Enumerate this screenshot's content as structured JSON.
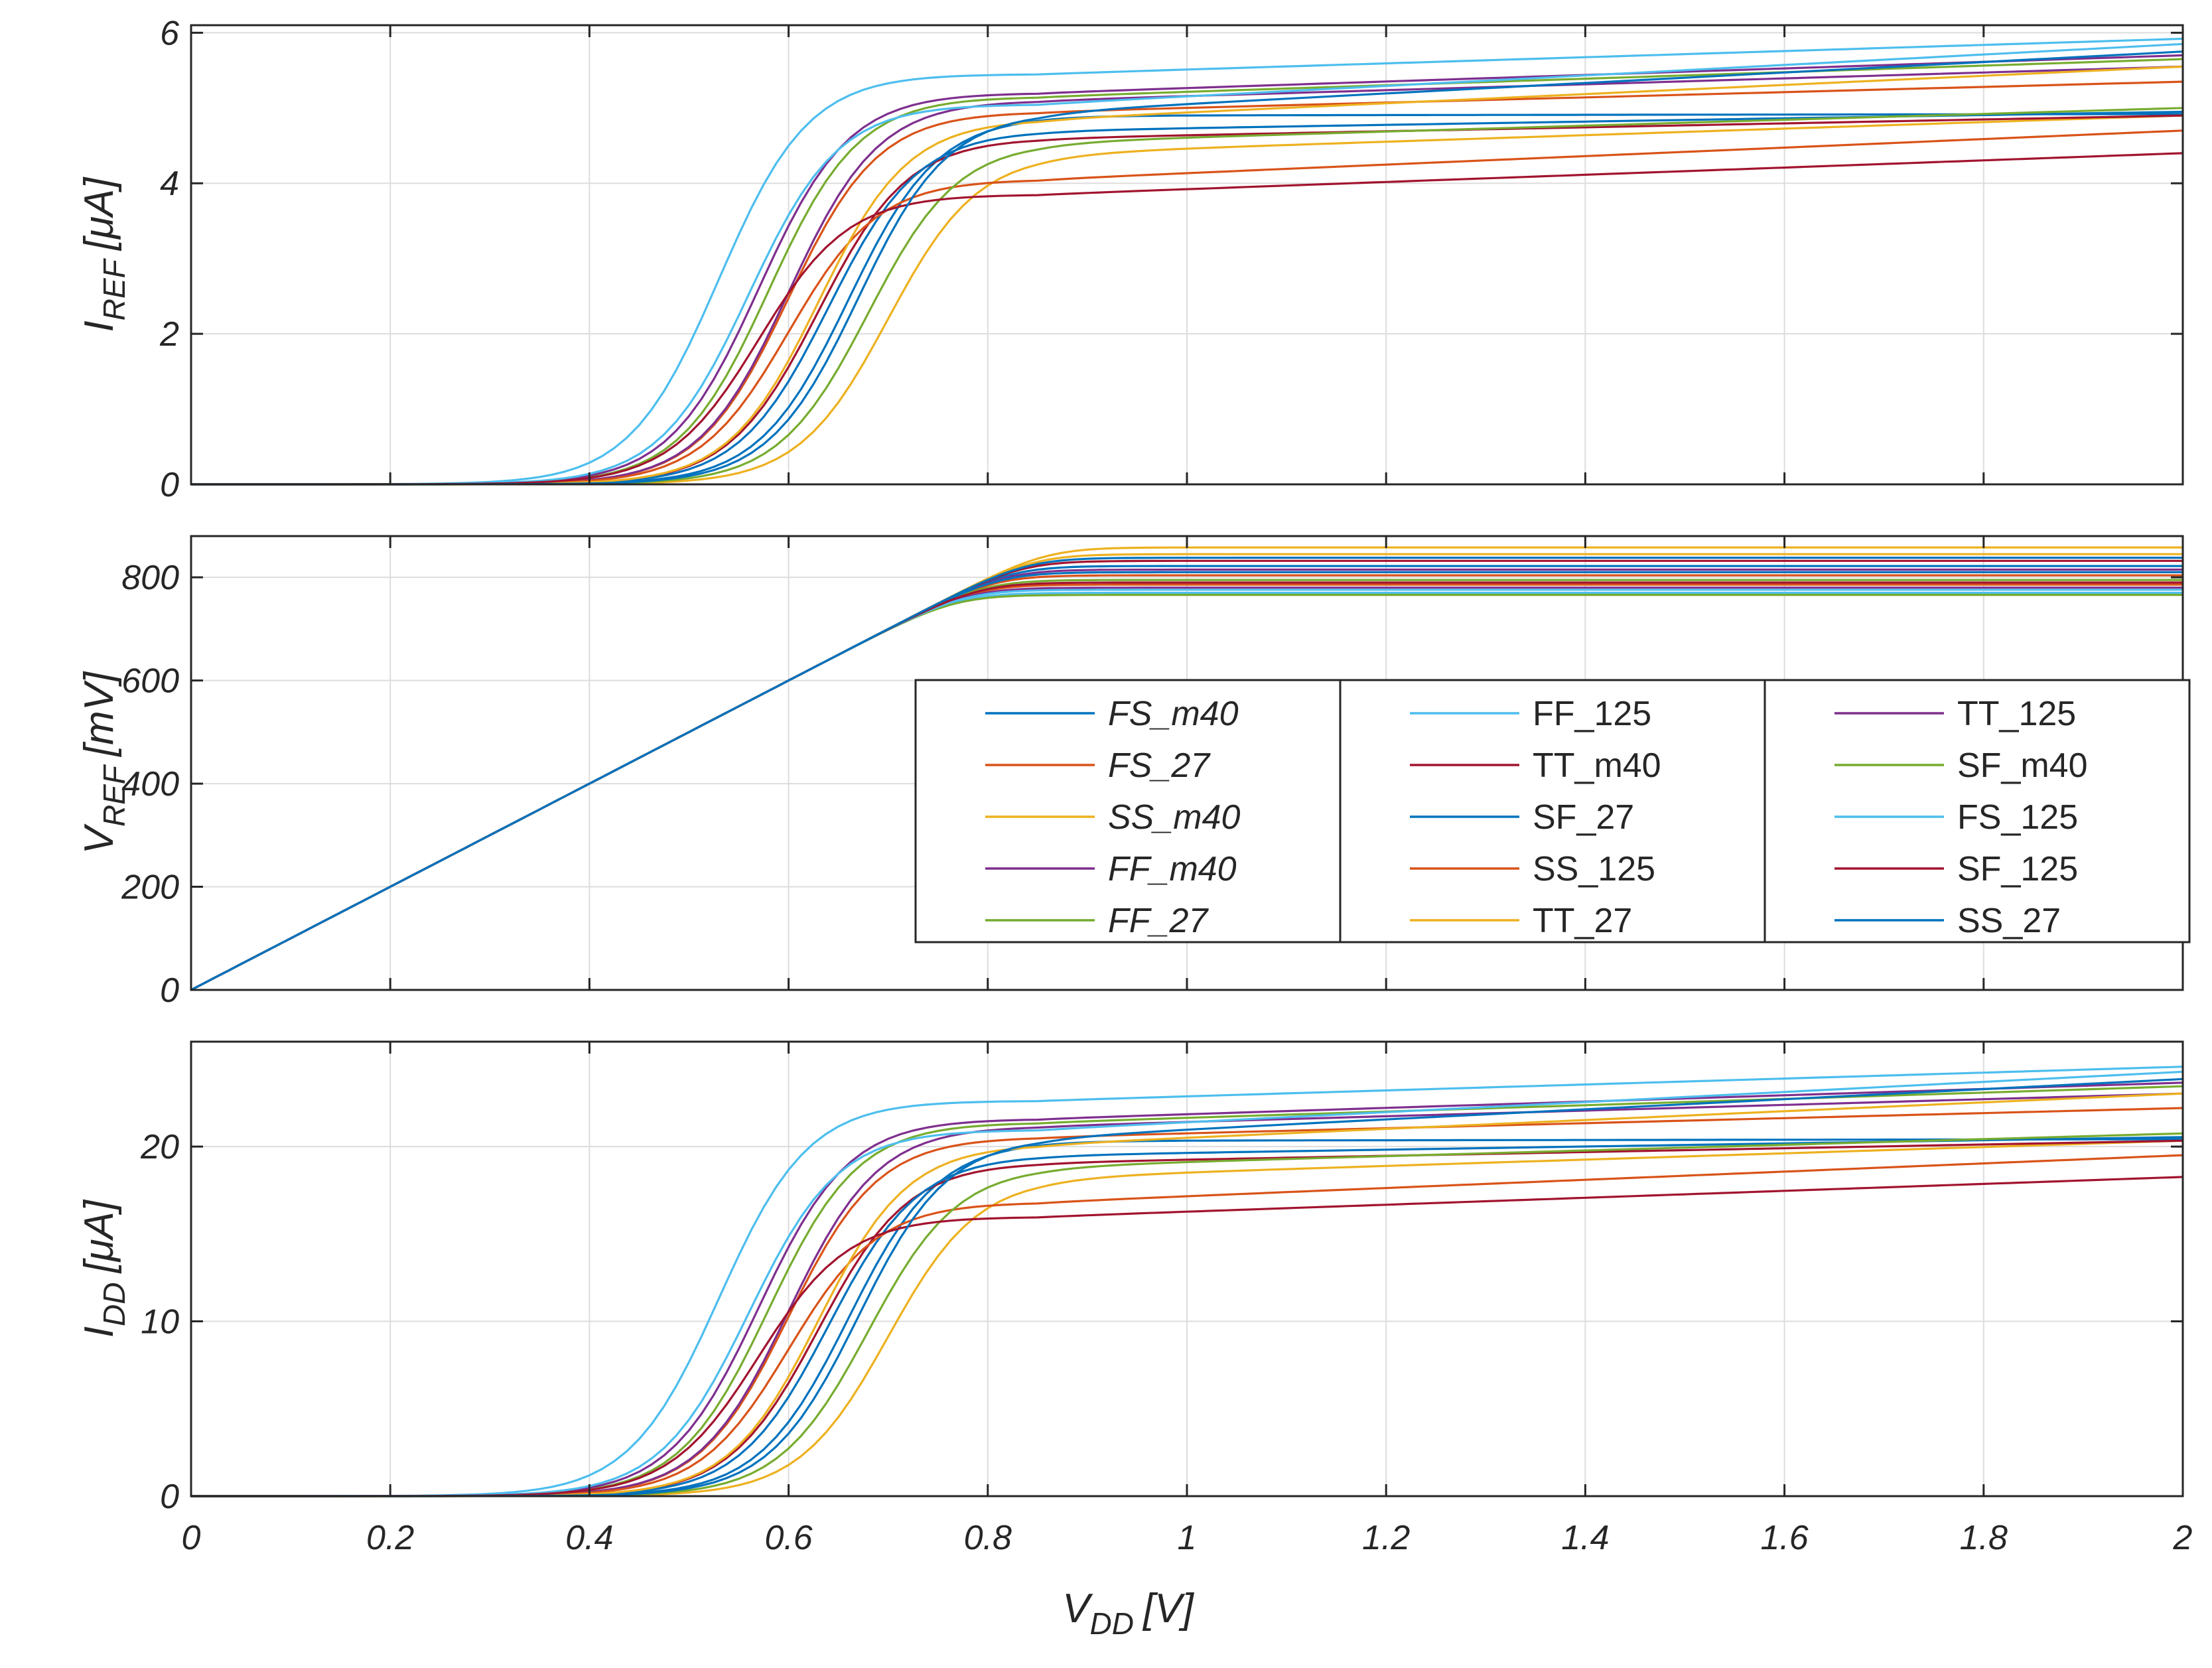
{
  "chart_data": {
    "type": "line",
    "x": [
      0,
      0.05,
      0.1,
      0.15,
      0.2,
      0.25,
      0.3,
      0.35,
      0.4,
      0.45,
      0.5,
      0.55,
      0.6,
      0.65,
      0.7,
      0.75,
      0.8,
      0.85,
      0.9,
      0.95,
      1.0,
      1.1,
      1.2,
      1.3,
      1.4,
      1.5,
      1.6,
      1.7,
      1.8,
      1.9,
      2.0
    ],
    "xlabel": "V",
    "xlabel_sub": "DD",
    "xlabel_unit": "[V]",
    "xlim": [
      0,
      2
    ],
    "xticks": [
      "0",
      "0.2",
      "0.4",
      "0.6",
      "0.8",
      "1",
      "1.2",
      "1.4",
      "1.6",
      "1.8",
      "2"
    ],
    "colors": {
      "blue": "#0072BD",
      "orange": "#D95319",
      "yellow": "#EDB120",
      "purple": "#7E2F8E",
      "green": "#77AC30",
      "cyan": "#4DBEEE",
      "red": "#A2142F",
      "axis": "#262626",
      "grid": "#dddddd"
    },
    "legend": {
      "placement": "center-right of middle panel",
      "columns": [
        [
          {
            "label": "FS_m40",
            "color": "#0072BD",
            "italic": true
          },
          {
            "label": "FS_27",
            "color": "#D95319",
            "italic": true
          },
          {
            "label": "SS_m40",
            "color": "#EDB120",
            "italic": true
          },
          {
            "label": "FF_m40",
            "color": "#7E2F8E",
            "italic": true
          },
          {
            "label": "FF_27",
            "color": "#77AC30",
            "italic": true
          }
        ],
        [
          {
            "label": "FF_125",
            "color": "#4DBEEE",
            "italic": false
          },
          {
            "label": "TT_m40",
            "color": "#A2142F",
            "italic": false
          },
          {
            "label": "SF_27",
            "color": "#0072BD",
            "italic": false
          },
          {
            "label": "SS_125",
            "color": "#D95319",
            "italic": false
          },
          {
            "label": "TT_27",
            "color": "#EDB120",
            "italic": false
          }
        ],
        [
          {
            "label": "TT_125",
            "color": "#7E2F8E",
            "italic": false
          },
          {
            "label": "SF_m40",
            "color": "#77AC30",
            "italic": false
          },
          {
            "label": "FS_125",
            "color": "#4DBEEE",
            "italic": false
          },
          {
            "label": "SF_125",
            "color": "#A2142F",
            "italic": false
          },
          {
            "label": "SS_27",
            "color": "#0072BD",
            "italic": false
          }
        ]
      ]
    },
    "corners": [
      {
        "name": "FS_m40",
        "color": "#0072BD",
        "vth": 0.66,
        "sat_i": 4.9,
        "end_i": 4.92,
        "vref": 822
      },
      {
        "name": "FS_27",
        "color": "#D95319",
        "vth": 0.6,
        "sat_i": 4.95,
        "end_i": 5.35,
        "vref": 804
      },
      {
        "name": "SS_m40",
        "color": "#EDB120",
        "vth": 0.7,
        "sat_i": 4.4,
        "end_i": 4.9,
        "vref": 858
      },
      {
        "name": "FF_m40",
        "color": "#7E2F8E",
        "vth": 0.6,
        "sat_i": 5.1,
        "end_i": 5.55,
        "vref": 815
      },
      {
        "name": "FF_27",
        "color": "#77AC30",
        "vth": 0.58,
        "sat_i": 5.15,
        "end_i": 5.65,
        "vref": 795
      },
      {
        "name": "FF_125",
        "color": "#4DBEEE",
        "vth": 0.53,
        "sat_i": 5.45,
        "end_i": 5.92,
        "vref": 770
      },
      {
        "name": "TT_m40",
        "color": "#A2142F",
        "vth": 0.63,
        "sat_i": 4.6,
        "end_i": 4.9,
        "vref": 832
      },
      {
        "name": "SF_27",
        "color": "#0072BD",
        "vth": 0.64,
        "sat_i": 4.7,
        "end_i": 4.95,
        "vref": 810
      },
      {
        "name": "SS_125",
        "color": "#D95319",
        "vth": 0.6,
        "sat_i": 4.05,
        "end_i": 4.7,
        "vref": 786
      },
      {
        "name": "TT_27",
        "color": "#EDB120",
        "vth": 0.63,
        "sat_i": 4.85,
        "end_i": 5.55,
        "vref": 845
      },
      {
        "name": "TT_125",
        "color": "#7E2F8E",
        "vth": 0.57,
        "sat_i": 5.2,
        "end_i": 5.7,
        "vref": 780
      },
      {
        "name": "SF_m40",
        "color": "#77AC30",
        "vth": 0.68,
        "sat_i": 4.55,
        "end_i": 5.0,
        "vref": 766
      },
      {
        "name": "FS_125",
        "color": "#4DBEEE",
        "vth": 0.56,
        "sat_i": 5.05,
        "end_i": 5.85,
        "vref": 776
      },
      {
        "name": "SF_125",
        "color": "#A2142F",
        "vth": 0.57,
        "sat_i": 3.85,
        "end_i": 4.4,
        "vref": 790
      },
      {
        "name": "SS_27",
        "color": "#0072BD",
        "vth": 0.67,
        "sat_i": 4.95,
        "end_i": 5.75,
        "vref": 838
      }
    ],
    "panels": [
      {
        "id": "iref",
        "ylabel": "I",
        "ylabel_sub": "REF",
        "ylabel_unit": "[μA]",
        "ylim": [
          0,
          6.1
        ],
        "yticks": [
          0,
          2,
          4,
          6
        ],
        "ytick_labels": [
          "0",
          "2",
          "4",
          "6"
        ],
        "scale": 1.0
      },
      {
        "id": "vref",
        "ylabel": "V",
        "ylabel_sub": "REF",
        "ylabel_unit": "[mV]",
        "ylim": [
          0,
          880
        ],
        "yticks": [
          0,
          200,
          400,
          600,
          800
        ],
        "ytick_labels": [
          "0",
          "200",
          "400",
          "600",
          "800"
        ]
      },
      {
        "id": "idd",
        "ylabel": "I",
        "ylabel_sub": "DD",
        "ylabel_unit": "[μA]",
        "ylim": [
          0,
          26
        ],
        "yticks": [
          0,
          10,
          20
        ],
        "ytick_labels": [
          "0",
          "10",
          "20"
        ],
        "scale": 4.15
      }
    ]
  }
}
